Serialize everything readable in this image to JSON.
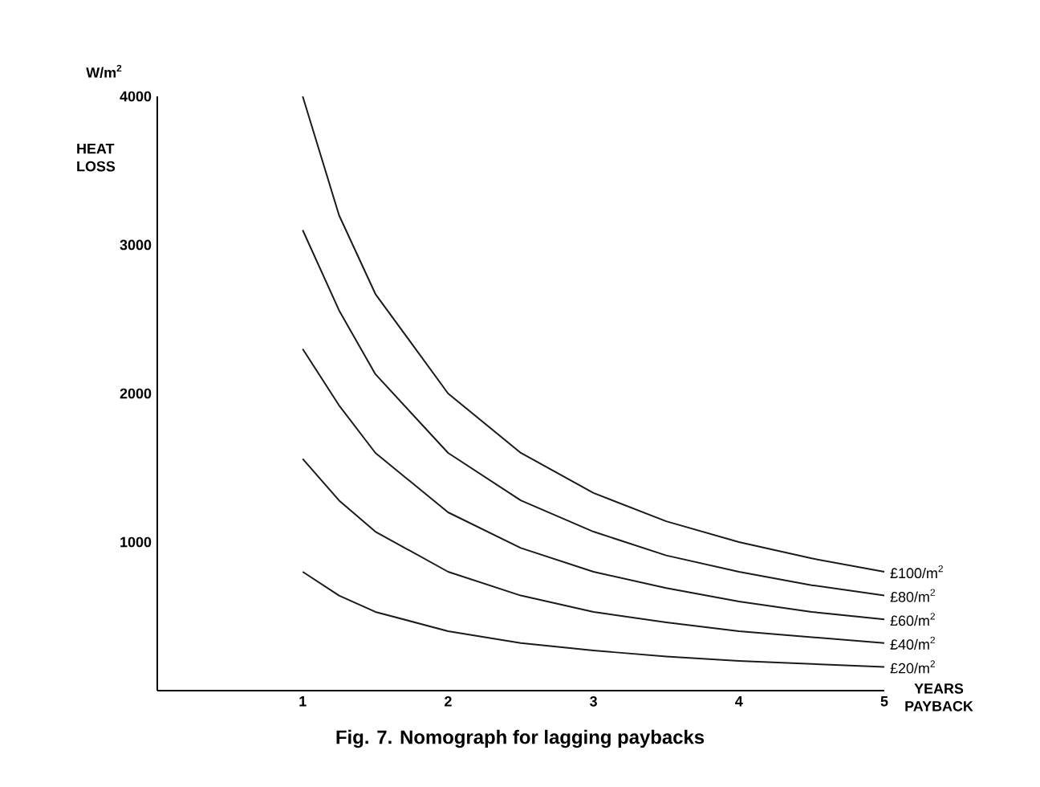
{
  "chart_data": {
    "type": "line",
    "title": "Fig. 7. Nomograph for lagging paybacks",
    "xlabel": "YEARS PAYBACK",
    "ylabel": "HEAT LOSS",
    "annotations": [
      "W/m$^{2}$"
    ],
    "x": [
      1,
      1.25,
      1.5,
      2,
      2.5,
      3,
      3.5,
      4,
      4.5,
      5
    ],
    "xlim": [
      0,
      5
    ],
    "ylim": [
      0,
      4000
    ],
    "xticks": [
      1,
      2,
      3,
      4,
      5
    ],
    "yticks": [
      1000,
      2000,
      3000,
      4000
    ],
    "series": [
      {
        "name": "£100/m$^{2}$",
        "color": "#1a1a1a",
        "values": [
          4000,
          3200,
          2670,
          2000,
          1600,
          1330,
          1140,
          1000,
          890,
          800
        ]
      },
      {
        "name": "£80/m$^{2}$",
        "color": "#1a1a1a",
        "values": [
          3100,
          2560,
          2130,
          1600,
          1280,
          1070,
          910,
          800,
          710,
          640
        ]
      },
      {
        "name": "£60/m$^{2}$",
        "color": "#1a1a1a",
        "values": [
          2300,
          1920,
          1600,
          1200,
          960,
          800,
          690,
          600,
          530,
          480
        ]
      },
      {
        "name": "£40/m$^{2}$",
        "color": "#1a1a1a",
        "values": [
          1560,
          1280,
          1070,
          800,
          640,
          530,
          460,
          400,
          360,
          320
        ]
      },
      {
        "name": "£20/m$^{2}$",
        "color": "#1a1a1a",
        "values": [
          800,
          640,
          530,
          400,
          320,
          270,
          230,
          200,
          180,
          160
        ]
      }
    ]
  }
}
